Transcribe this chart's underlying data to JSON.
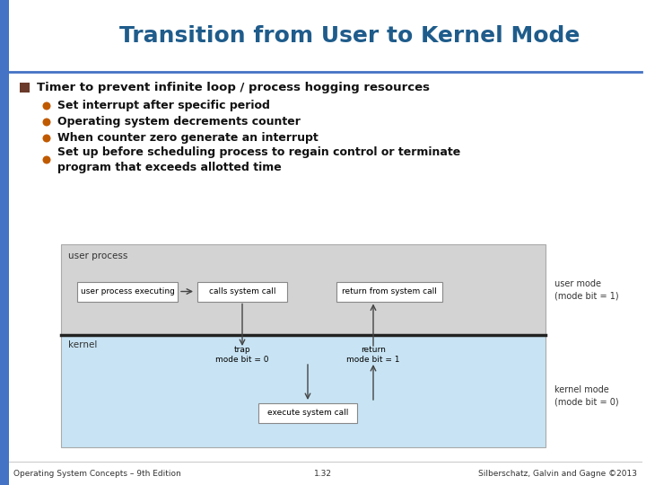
{
  "title": "Transition from User to Kernel Mode",
  "title_color": "#1F5C8B",
  "title_fontsize": 18,
  "bg_color": "#FFFFFF",
  "left_bar_color": "#4472C4",
  "header_line_color": "#4472C4",
  "bullet_main_color": "#6B3A2A",
  "bullet_main_text": "Timer to prevent infinite loop / process hogging resources",
  "bullet_sub_color": "#C05A00",
  "bullet_sub_items": [
    "Set interrupt after specific period",
    "Operating system decrements counter",
    "When counter zero generate an interrupt",
    "Set up before scheduling process to regain control or terminate\nprogram that exceeds allotted time"
  ],
  "footer_left": "Operating System Concepts – 9th Edition",
  "footer_center": "1.32",
  "footer_right": "Silberschatz, Galvin and Gagne ©2013",
  "diagram": {
    "user_box_color": "#D3D3D3",
    "kernel_box_color": "#C8E4F4",
    "divider_color": "#222222",
    "box_border_color": "#888888",
    "box_fill_color": "#FFFFFF",
    "user_label": "user process",
    "kernel_label": "kernel",
    "user_mode_label": "user mode\n(mode bit = 1)",
    "kernel_mode_label": "kernel mode\n(mode bit = 0)",
    "box1_text": "user process executing",
    "box2_text": "calls system call",
    "box3_text": "return from system call",
    "box4_text": "execute system call",
    "trap_text": "trap\nmode bit = 0",
    "return_text": "return\nmode bit = 1"
  }
}
